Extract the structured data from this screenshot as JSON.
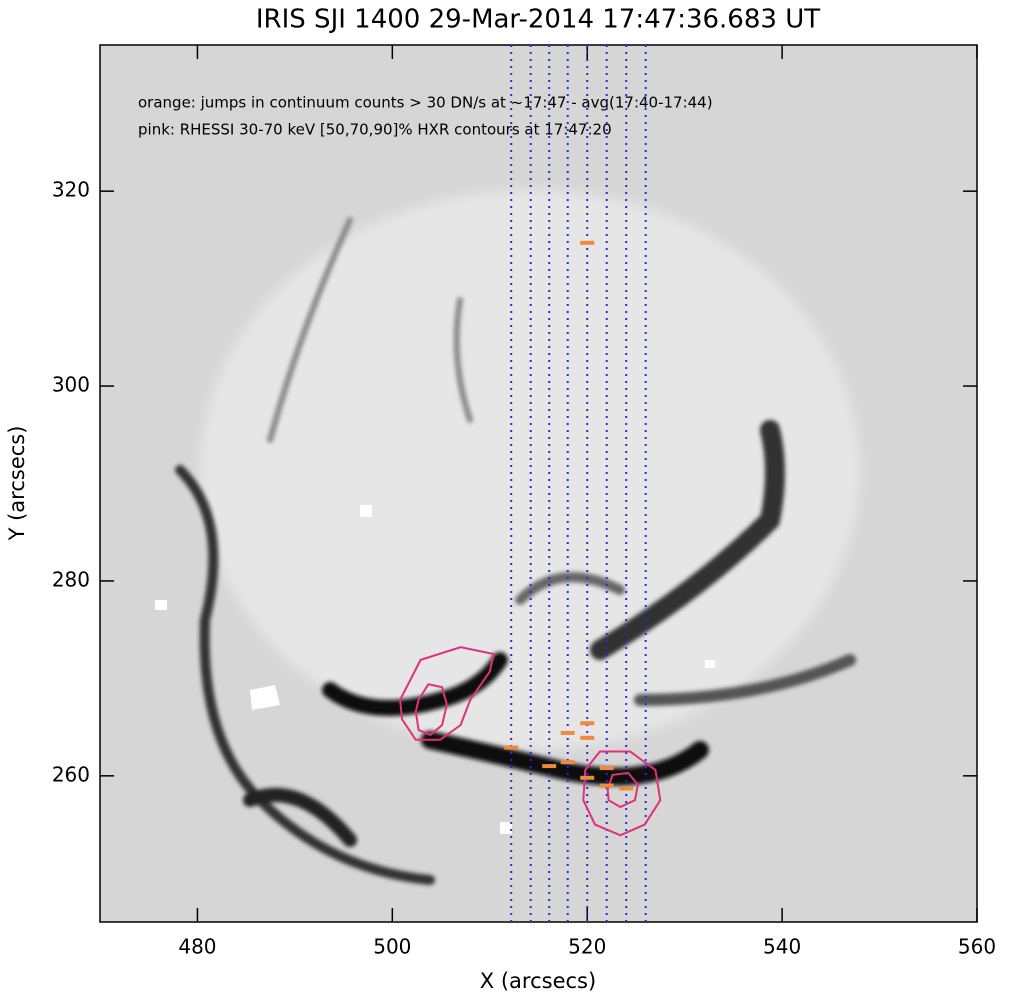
{
  "chart_data": {
    "type": "image",
    "title": "IRIS SJI 1400 29-Mar-2014 17:47:36.683 UT",
    "xlabel": "X (arcsecs)",
    "ylabel": "Y (arcsecs)",
    "annotations": [
      "orange: jumps in continuum counts > 30 DN/s at ~17:47 - avg(17:40-17:44)",
      "pink: RHESSI 30-70 keV [50,70,90]% HXR contours at 17:47:20"
    ],
    "xlim": [
      470,
      560
    ],
    "ylim": [
      245,
      335
    ],
    "xticks": [
      480,
      500,
      520,
      540,
      560
    ],
    "yticks": [
      260,
      280,
      300,
      320
    ],
    "slit_color": "#2a2ad8",
    "slit_x": [
      512.2,
      514.2,
      516.1,
      518.0,
      520.0,
      522.0,
      524.0,
      526.0
    ],
    "jumps": {
      "color": "#f08a3a",
      "x": [
        520.0,
        512.2,
        516.1,
        518.0,
        518.0,
        520.0,
        520.0,
        520.0,
        522.0,
        522.0,
        524.0
      ],
      "y": [
        314.7,
        262.9,
        261.0,
        264.4,
        261.4,
        265.4,
        263.9,
        259.8,
        260.8,
        259.0,
        258.7
      ]
    },
    "contours": [
      {
        "color": "#e0307a",
        "x": [
          500.8,
          502.9,
          507.0,
          510.4,
          510.0,
          508.0,
          507.0,
          504.9,
          502.4,
          501.0
        ],
        "y": [
          267.8,
          271.9,
          273.2,
          272.5,
          270.7,
          267.8,
          265.2,
          263.7,
          263.7,
          265.8
        ]
      },
      {
        "color": "#e0307a",
        "x": [
          502.7,
          503.7,
          505.1,
          505.6,
          505.1,
          503.9,
          502.7,
          502.4
        ],
        "y": [
          267.8,
          269.4,
          269.1,
          267.3,
          265.2,
          264.2,
          264.7,
          266.6
        ]
      },
      {
        "color": "#e0307a",
        "x": [
          519.8,
          521.3,
          524.4,
          527.0,
          527.5,
          525.9,
          523.4,
          520.8,
          519.6
        ],
        "y": [
          260.6,
          262.5,
          262.5,
          260.6,
          257.5,
          255.0,
          253.9,
          255.0,
          257.5
        ]
      },
      {
        "color": "#e0307a",
        "x": [
          522.1,
          522.6,
          524.2,
          525.2,
          524.9,
          523.4,
          522.2
        ],
        "y": [
          258.6,
          260.1,
          260.3,
          259.1,
          257.5,
          256.8,
          257.5
        ]
      }
    ]
  }
}
